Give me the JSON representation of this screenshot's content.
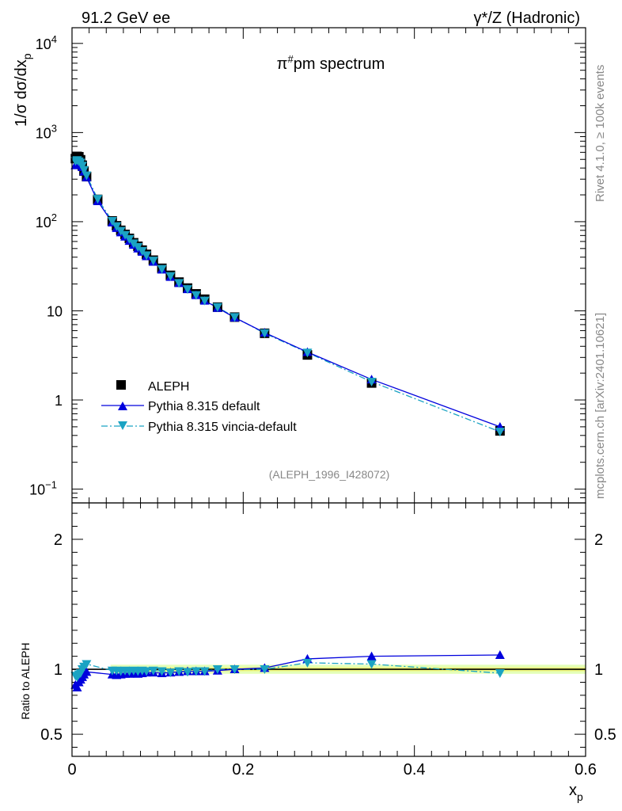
{
  "header": {
    "left_title": "91.2 GeV ee",
    "right_title": "γ*/Z (Hadronic)"
  },
  "side_labels": {
    "rivet": "Rivet 4.1.0, ≥ 100k events",
    "mcplots": "mcplots.cern.ch [arXiv:2401.10621]"
  },
  "colors": {
    "aleph": "#000000",
    "default": "#0000dd",
    "vincia": "#1ba3c3",
    "band_inner": "#f0f57a",
    "band_outer": "#e4ffb8"
  },
  "chart_data": [
    {
      "type": "line",
      "scale": "log",
      "title": "π#pm spectrum",
      "title_main": "π",
      "title_sup": "#",
      "title_rest": "pm spectrum",
      "ylabel_pre": "1/σ  dσ/dx",
      "ylabel_sub": "p",
      "xlim": [
        0,
        0.6
      ],
      "ylim": [
        0.07,
        15000
      ],
      "ytick_labels": [
        {
          "value": 0.1,
          "base": "10",
          "exp": "−1"
        },
        {
          "value": 1,
          "base": "1",
          "exp": ""
        },
        {
          "value": 10,
          "base": "10",
          "exp": ""
        },
        {
          "value": 100,
          "base": "10",
          "exp": "2"
        },
        {
          "value": 1000,
          "base": "10",
          "exp": "3"
        },
        {
          "value": 10000,
          "base": "10",
          "exp": "4"
        }
      ],
      "x": [
        0.004,
        0.006,
        0.008,
        0.01,
        0.012,
        0.014,
        0.017,
        0.03,
        0.047,
        0.052,
        0.057,
        0.062,
        0.067,
        0.072,
        0.077,
        0.082,
        0.087,
        0.095,
        0.105,
        0.115,
        0.125,
        0.135,
        0.145,
        0.155,
        0.17,
        0.19,
        0.225,
        0.275,
        0.35,
        0.5
      ],
      "series": [
        {
          "name": "ALEPH",
          "marker": "square",
          "values": [
            510,
            540,
            535,
            495,
            430,
            370,
            320,
            178,
            102,
            90,
            80,
            72,
            65,
            58,
            53,
            48,
            43,
            37,
            30,
            25,
            21,
            18,
            15.5,
            13.5,
            11,
            8.5,
            5.6,
            3.2,
            1.55,
            0.45
          ]
        },
        {
          "name": "Pythia 8.315 default",
          "marker": "triangle-up",
          "line": "solid",
          "values": [
            430,
            440,
            450,
            445,
            410,
            365,
            315,
            170,
            98,
            85,
            76,
            68,
            61,
            55,
            50,
            46,
            41,
            35.5,
            29,
            24,
            20.5,
            17.5,
            15,
            13,
            10.8,
            8.4,
            5.7,
            3.45,
            1.7,
            0.5
          ]
        },
        {
          "name": "Pythia 8.315 vincia-default",
          "marker": "triangle-down",
          "line": "dashdot",
          "values": [
            480,
            490,
            475,
            460,
            425,
            380,
            330,
            180,
            102,
            89,
            79,
            71,
            64,
            57,
            52,
            47,
            42,
            36.5,
            29.5,
            24.5,
            20.5,
            17.5,
            15,
            13,
            11,
            8.5,
            5.6,
            3.4,
            1.6,
            0.44
          ]
        }
      ],
      "legend_position": "middle-left",
      "watermark": "(ALEPH_1996_I428072)"
    },
    {
      "type": "line",
      "ylabel": "Ratio to ALEPH",
      "xlabel_main": "x",
      "xlabel_sub": "p",
      "xlim": [
        0,
        0.6
      ],
      "ylim": [
        0.33,
        2.28
      ],
      "ytick_labels": [
        "0.5",
        "1",
        "2"
      ],
      "ytick_values": [
        0.5,
        1,
        2
      ],
      "xtick_labels": [
        "0",
        "0.2",
        "0.4",
        "0.6"
      ],
      "xtick_values": [
        0,
        0.2,
        0.4,
        0.6
      ],
      "band": {
        "x_from": 0.045,
        "x_to": 0.6,
        "inner": [
          0.985,
          1.015
        ],
        "outer": [
          0.965,
          1.035
        ]
      },
      "x": [
        0.004,
        0.006,
        0.008,
        0.01,
        0.012,
        0.014,
        0.017,
        0.047,
        0.052,
        0.057,
        0.062,
        0.067,
        0.072,
        0.077,
        0.082,
        0.087,
        0.095,
        0.105,
        0.115,
        0.125,
        0.135,
        0.145,
        0.155,
        0.17,
        0.19,
        0.225,
        0.275,
        0.35,
        0.5
      ],
      "series": [
        {
          "name": "Pythia 8.315 default",
          "marker": "triangle-up",
          "line": "solid",
          "values": [
            0.88,
            0.86,
            0.9,
            0.92,
            0.94,
            0.96,
            0.98,
            0.96,
            0.955,
            0.96,
            0.965,
            0.965,
            0.97,
            0.965,
            0.97,
            0.975,
            0.975,
            0.97,
            0.975,
            0.98,
            0.985,
            0.985,
            0.985,
            0.99,
            1.0,
            1.01,
            1.08,
            1.1,
            1.11
          ]
        },
        {
          "name": "Pythia 8.315 vincia-default",
          "marker": "triangle-down",
          "line": "dashdot",
          "values": [
            0.95,
            0.94,
            0.96,
            0.97,
            1.0,
            1.02,
            1.04,
            0.99,
            0.99,
            0.985,
            0.99,
            0.985,
            0.99,
            0.985,
            0.99,
            0.985,
            0.99,
            0.985,
            0.975,
            0.985,
            0.98,
            0.985,
            0.985,
            1.0,
            1.0,
            1.0,
            1.05,
            1.04,
            0.97
          ]
        }
      ]
    }
  ]
}
